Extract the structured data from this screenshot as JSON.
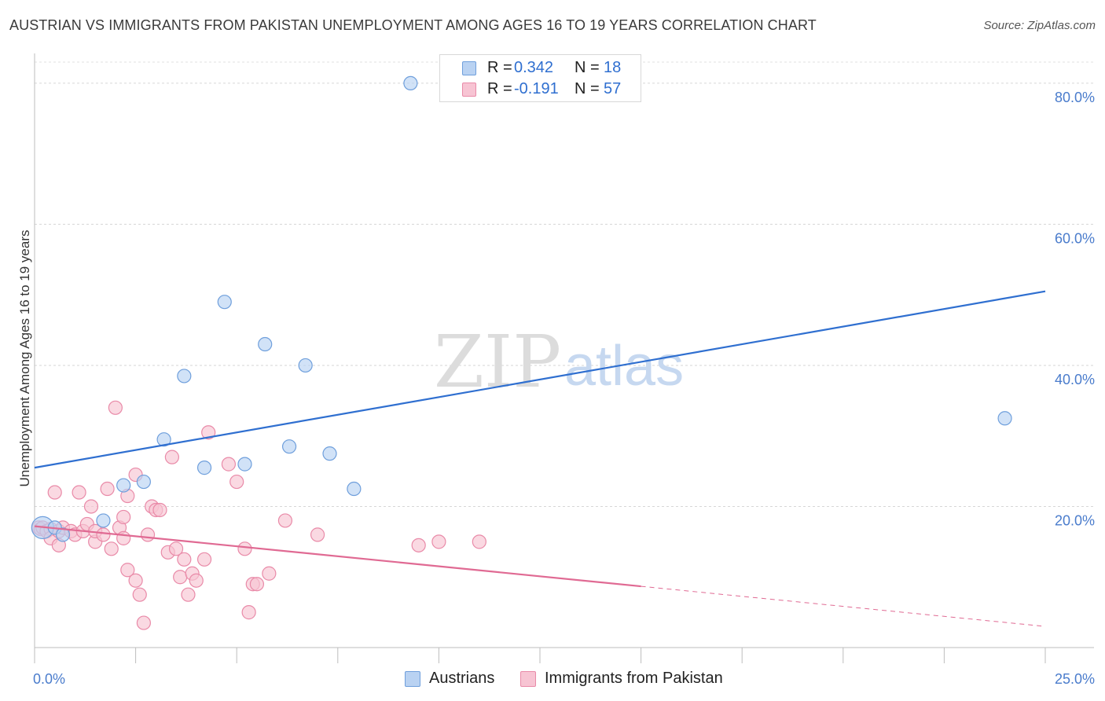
{
  "title": "AUSTRIAN VS IMMIGRANTS FROM PAKISTAN UNEMPLOYMENT AMONG AGES 16 TO 19 YEARS CORRELATION CHART",
  "source": "Source: ZipAtlas.com",
  "watermark": {
    "zip": "ZIP",
    "atlas": "atlas"
  },
  "colors": {
    "blue_fill": "#b9d2f2",
    "blue_stroke": "#6f9fdc",
    "blue_line": "#2f6fd0",
    "pink_fill": "#f7c4d3",
    "pink_stroke": "#e98aa8",
    "pink_line": "#e06a93",
    "axis_text": "#4a7ccc"
  },
  "legend_top": [
    {
      "r_label": "R =",
      "r_value": "0.342",
      "n_label": "N =",
      "n_value": "18"
    },
    {
      "r_label": "R =",
      "r_value": "-0.191",
      "n_label": "N =",
      "n_value": "57"
    }
  ],
  "legend_bottom": [
    "Austrians",
    "Immigrants from Pakistan"
  ],
  "chart_data": {
    "type": "scatter",
    "title": "AUSTRIAN VS IMMIGRANTS FROM PAKISTAN UNEMPLOYMENT AMONG AGES 16 TO 19 YEARS CORRELATION CHART",
    "xlabel": "",
    "ylabel": "Unemployment Among Ages 16 to 19 years",
    "xlim": [
      0,
      25
    ],
    "ylim": [
      0,
      84
    ],
    "x_ticks": [
      0,
      2.5,
      5,
      7.5,
      10,
      12.5,
      15,
      17.5,
      20,
      22.5,
      25
    ],
    "x_tick_labels": {
      "0": "0.0%",
      "25": "25.0%"
    },
    "y_ticks": [
      20,
      40,
      60,
      80
    ],
    "y_tick_labels": [
      "20.0%",
      "40.0%",
      "60.0%",
      "80.0%"
    ],
    "grid": true,
    "series": [
      {
        "name": "Austrians",
        "r": 0.342,
        "n": 18,
        "points": [
          [
            0.2,
            17.0
          ],
          [
            0.5,
            17.0
          ],
          [
            0.7,
            16.0
          ],
          [
            1.7,
            18.0
          ],
          [
            2.2,
            23.0
          ],
          [
            2.7,
            23.5
          ],
          [
            3.2,
            29.5
          ],
          [
            3.7,
            38.5
          ],
          [
            4.2,
            25.5
          ],
          [
            4.7,
            49.0
          ],
          [
            5.2,
            26.0
          ],
          [
            5.7,
            43.0
          ],
          [
            6.3,
            28.5
          ],
          [
            6.7,
            40.0
          ],
          [
            7.3,
            27.5
          ],
          [
            7.9,
            22.5
          ],
          [
            9.3,
            80.0
          ],
          [
            24.0,
            32.5
          ]
        ],
        "trend": {
          "x": [
            0,
            25
          ],
          "y": [
            25.5,
            50.5
          ],
          "dashed_from": null
        }
      },
      {
        "name": "Immigrants from Pakistan",
        "r": -0.191,
        "n": 57,
        "points": [
          [
            0.1,
            17.0
          ],
          [
            0.15,
            16.8
          ],
          [
            0.2,
            17.0
          ],
          [
            0.3,
            16.5
          ],
          [
            0.4,
            16.8
          ],
          [
            0.4,
            15.5
          ],
          [
            0.5,
            22.0
          ],
          [
            0.6,
            16.5
          ],
          [
            0.6,
            14.5
          ],
          [
            0.7,
            17.0
          ],
          [
            0.9,
            16.5
          ],
          [
            1.0,
            16.0
          ],
          [
            1.1,
            22.0
          ],
          [
            1.2,
            16.5
          ],
          [
            1.3,
            17.5
          ],
          [
            1.4,
            20.0
          ],
          [
            1.5,
            15.0
          ],
          [
            1.5,
            16.5
          ],
          [
            1.7,
            16.0
          ],
          [
            1.8,
            22.5
          ],
          [
            1.9,
            14.0
          ],
          [
            2.0,
            34.0
          ],
          [
            2.1,
            17.0
          ],
          [
            2.2,
            18.5
          ],
          [
            2.2,
            15.5
          ],
          [
            2.3,
            21.5
          ],
          [
            2.3,
            11.0
          ],
          [
            2.5,
            24.5
          ],
          [
            2.5,
            9.5
          ],
          [
            2.6,
            7.5
          ],
          [
            2.7,
            3.5
          ],
          [
            2.8,
            16.0
          ],
          [
            2.9,
            20.0
          ],
          [
            3.0,
            19.5
          ],
          [
            3.1,
            19.5
          ],
          [
            3.3,
            13.5
          ],
          [
            3.4,
            27.0
          ],
          [
            3.5,
            14.0
          ],
          [
            3.6,
            10.0
          ],
          [
            3.7,
            12.5
          ],
          [
            3.8,
            7.5
          ],
          [
            3.9,
            10.5
          ],
          [
            4.0,
            9.5
          ],
          [
            4.2,
            12.5
          ],
          [
            4.3,
            30.5
          ],
          [
            4.8,
            26.0
          ],
          [
            5.0,
            23.5
          ],
          [
            5.2,
            14.0
          ],
          [
            5.3,
            5.0
          ],
          [
            5.4,
            9.0
          ],
          [
            5.5,
            9.0
          ],
          [
            5.8,
            10.5
          ],
          [
            6.2,
            18.0
          ],
          [
            7.0,
            16.0
          ],
          [
            9.5,
            14.5
          ],
          [
            10.0,
            15.0
          ],
          [
            11.0,
            15.0
          ]
        ],
        "trend": {
          "x": [
            0,
            25
          ],
          "y": [
            17.2,
            3.0
          ],
          "dashed_from": 15
        }
      }
    ]
  }
}
